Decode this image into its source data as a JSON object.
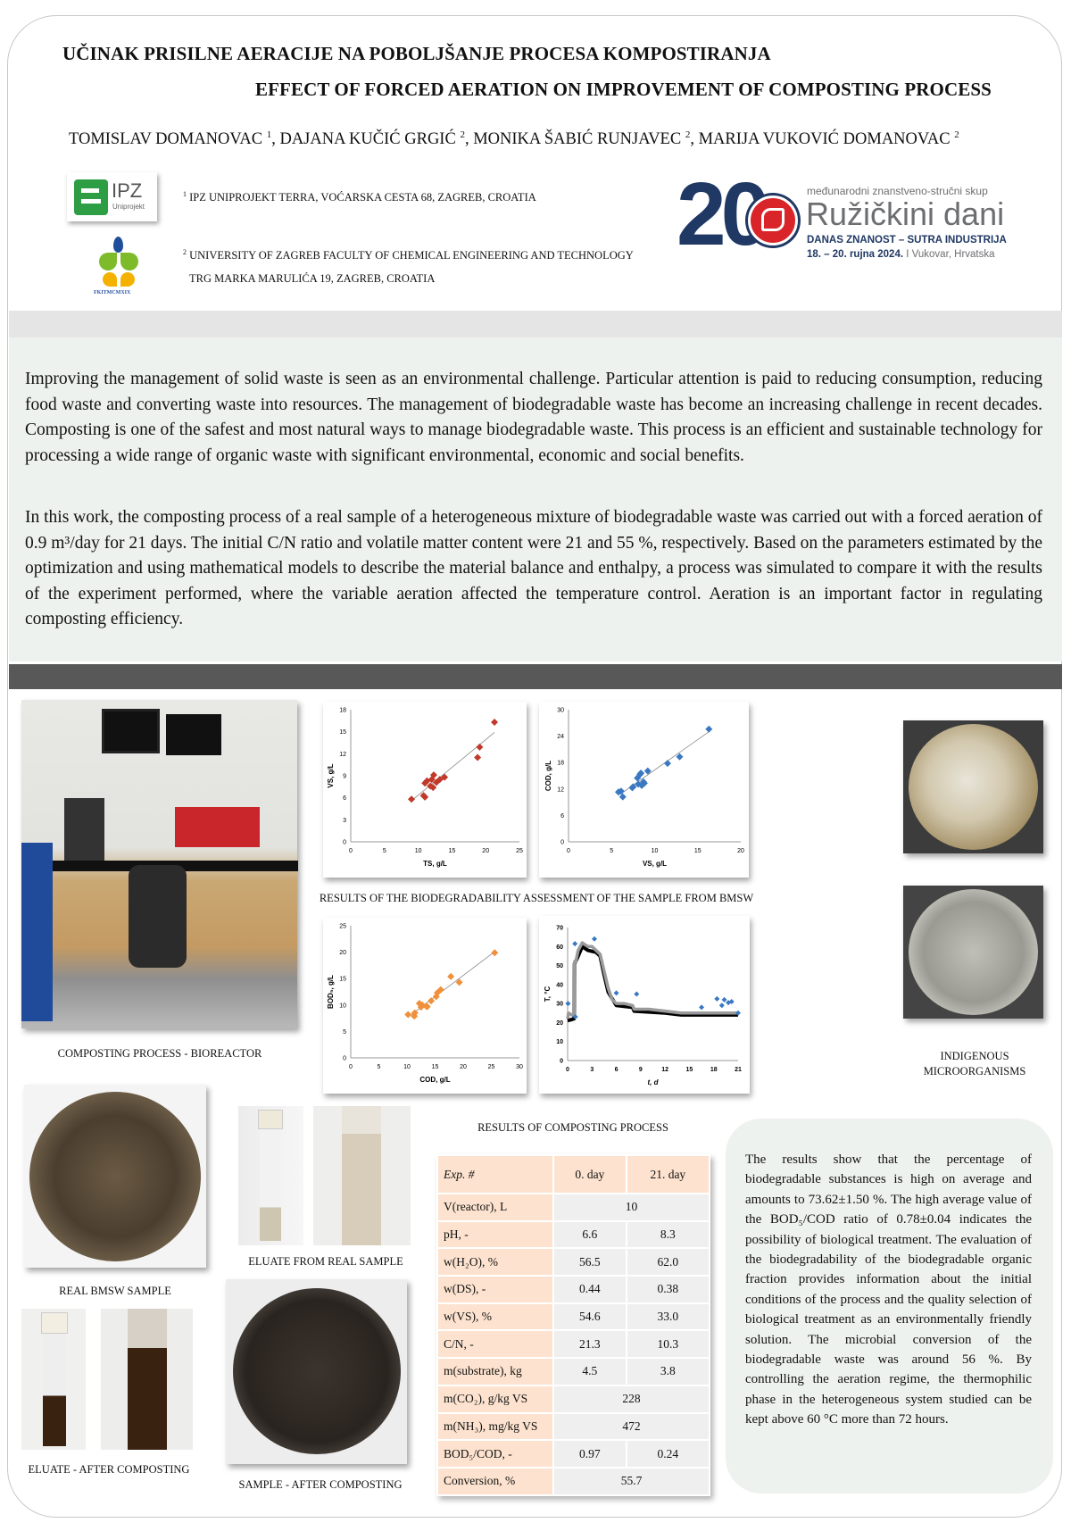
{
  "header": {
    "title_hr": "UČINAK PRISILNE AERACIJE NA POBOLJŠANJE PROCESA KOMPOSTIRANJA",
    "title_en": "EFFECT OF FORCED AERATION ON IMPROVEMENT OF COMPOSTING PROCESS",
    "authors": [
      {
        "name": "TOMISLAV DOMANOVAC",
        "aff": "1"
      },
      {
        "name": "DAJANA KUČIĆ GRGIĆ",
        "aff": "2"
      },
      {
        "name": "MONIKA ŠABIĆ RUNJAVEC",
        "aff": "2"
      },
      {
        "name": "MARIJA VUKOVIĆ DOMANOVAC",
        "aff": "2"
      }
    ],
    "affiliations": [
      {
        "num": "1",
        "line1": "IPZ UNIPROJEKT TERRA, VOĆARSKA CESTA 68, ZAGREB, CROATIA"
      },
      {
        "num": "2",
        "line1": "UNIVERSITY OF ZAGREB  FACULTY OF CHEMICAL ENGINEERING AND TECHNOLOGY",
        "line2": "TRG MARKA MARULIĆA 19, ZAGREB, CROATIA"
      }
    ],
    "logo_ipz": {
      "text": "IPZ",
      "sub": "Uniprojekt"
    },
    "logo_fkit": {
      "text": "FKITMCMXIX"
    },
    "conference": {
      "number": "20",
      "tagline": "međunarodni znanstveno-stručni skup",
      "name": "Ružičkini dani",
      "motto": "DANAS ZNANOST – SUTRA INDUSTRIJA",
      "dates": "18. – 20. rujna 2024.",
      "place": " I Vukovar, Hrvatska",
      "colors": {
        "navy": "#1f3864",
        "red": "#d9252a",
        "gray": "#6d6e71"
      }
    }
  },
  "abstract": {
    "p1": "Improving the management of solid waste is seen as an environmental challenge. Particular attention is paid to reducing consumption, reducing food waste and converting waste into resources. The management of biodegradable waste has become an increasing challenge in recent decades. Composting is one of the safest and most natural ways to manage biodegradable waste. This process is an efficient and sustainable technology for processing a wide range of organic waste with significant environmental, economic and social benefits.",
    "p2": "In this work, the composting process of a real sample of a heterogeneous mixture of biodegradable waste was carried out with a forced aeration of 0.9 m³/day for 21 days. The initial C/N ratio and volatile matter content were 21 and 55 %, respectively. Based on the parameters estimated by the optimization and using mathematical models to describe the material balance and enthalpy, a process was simulated to compare it with the results of the experiment performed, where the variable aeration affected the temperature control. Aeration is an important factor in regulating composting efficiency."
  },
  "captions": {
    "bioreactor": "COMPOSTING PROCESS - BIOREACTOR",
    "biodeg": "RESULTS OF THE BIODEGRADABILITY ASSESSMENT OF THE SAMPLE FROM BMSW",
    "micro1": "INDIGENOUS",
    "micro2": "MICROORGANISMS",
    "bmsw": "REAL BMSW SAMPLE",
    "eluate_real": "ELUATE FROM REAL SAMPLE",
    "eluate_after": "ELUATE - AFTER COMPOSTING",
    "sample_after": "SAMPLE - AFTER COMPOSTING",
    "table_title": "RESULTS OF COMPOSTING PROCESS"
  },
  "table": {
    "headers": [
      "Exp. #",
      "0. day",
      "21. day"
    ],
    "rows": [
      {
        "label": "V(reactor), L",
        "merged": "10"
      },
      {
        "label": "pH, -",
        "d0": "6.6",
        "d21": "8.3"
      },
      {
        "label": "w(H₂O), %",
        "d0": "56.5",
        "d21": "62.0"
      },
      {
        "label": "w(DS), -",
        "d0": "0.44",
        "d21": "0.38"
      },
      {
        "label": "w(VS), %",
        "d0": "54.6",
        "d21": "33.0"
      },
      {
        "label": "C/N, -",
        "d0": "21.3",
        "d21": "10.3"
      },
      {
        "label": "m(substrate), kg",
        "d0": "4.5",
        "d21": "3.8"
      },
      {
        "label": "m(CO₂), g/kg VS",
        "merged": "228"
      },
      {
        "label": "m(NH₃), mg/kg VS",
        "merged": "472"
      },
      {
        "label": "BOD₅/COD, -",
        "d0": "0.97",
        "d21": "0.24"
      },
      {
        "label": "Conversion, %",
        "merged": "55.7"
      }
    ]
  },
  "conclusion": "The results show that the percentage of biodegradable substances is high on average and amounts to 73.62±1.50 %. The high average value of the BOD₅/COD ratio of 0.78±0.04 indicates the possibility of biological treatment. The evaluation of the biodegradability of the biodegradable organic fraction provides information about the initial conditions of the process and the quality selection of biological treatment as an environmentally friendly solution. The microbial conversion of the biodegradable waste was around 56 %. By controlling the aeration regime, the thermophilic phase in the heterogeneous system studied can be kept above 60 °C more than 72 hours.",
  "chart_data": [
    {
      "type": "scatter",
      "xlabel": "TS, g/L",
      "ylabel": "VS, g/L",
      "xlim": [
        0,
        25
      ],
      "ylim": [
        0,
        18
      ],
      "xticks": [
        0,
        5,
        10,
        15,
        20,
        25
      ],
      "yticks": [
        0,
        3,
        6,
        9,
        12,
        15,
        18
      ],
      "color": "#c0392b",
      "trendline": [
        [
          9,
          5.6
        ],
        [
          21.3,
          14.9
        ]
      ],
      "points": [
        [
          9,
          5.8
        ],
        [
          10.8,
          6.3
        ],
        [
          11,
          6.1
        ],
        [
          11,
          8
        ],
        [
          11.3,
          8.3
        ],
        [
          11.8,
          7.6
        ],
        [
          12,
          8.5
        ],
        [
          12.2,
          7.4
        ],
        [
          12.3,
          9.1
        ],
        [
          12.7,
          8.1
        ],
        [
          13.2,
          8.5
        ],
        [
          13.9,
          8.8
        ],
        [
          18.8,
          11.5
        ],
        [
          19.1,
          12.9
        ],
        [
          21.3,
          16.3
        ]
      ]
    },
    {
      "type": "scatter",
      "xlabel": "VS, g/L",
      "ylabel": "COD, g/L",
      "xlim": [
        0,
        20
      ],
      "ylim": [
        0,
        30
      ],
      "xticks": [
        0,
        5,
        10,
        15,
        20
      ],
      "yticks": [
        0,
        6,
        12,
        18,
        24,
        30
      ],
      "color": "#3a78c2",
      "trendline": [
        [
          6,
          10.8
        ],
        [
          16.3,
          25
        ]
      ],
      "points": [
        [
          5.8,
          11.3
        ],
        [
          6.1,
          11.5
        ],
        [
          6.3,
          10.2
        ],
        [
          7.4,
          12.3
        ],
        [
          7.5,
          12.5
        ],
        [
          8,
          14.5
        ],
        [
          8.1,
          13.1
        ],
        [
          8.3,
          15.3
        ],
        [
          8.4,
          15.6
        ],
        [
          8.5,
          12.8
        ],
        [
          8.7,
          13.6
        ],
        [
          8.8,
          13.3
        ],
        [
          9.2,
          16.1
        ],
        [
          11.5,
          17.8
        ],
        [
          12.9,
          19.3
        ],
        [
          16.3,
          25.6
        ]
      ]
    },
    {
      "type": "scatter",
      "xlabel": "COD, g/L",
      "ylabel": "BOD₅, g/L",
      "xlim": [
        0,
        30
      ],
      "ylim": [
        0,
        25
      ],
      "xticks": [
        0,
        5,
        10,
        15,
        20,
        25,
        30
      ],
      "yticks": [
        0,
        5,
        10,
        15,
        20,
        25
      ],
      "color": "#f0903a",
      "trendline": [
        [
          10.3,
          7.8
        ],
        [
          25.6,
          20.1
        ]
      ],
      "points": [
        [
          10.2,
          8.2
        ],
        [
          11.3,
          7.9
        ],
        [
          11.4,
          8.5
        ],
        [
          12.2,
          10.3
        ],
        [
          12.5,
          9.6
        ],
        [
          12.7,
          10
        ],
        [
          13.4,
          9.8
        ],
        [
          13.6,
          9.7
        ],
        [
          14.3,
          10.8
        ],
        [
          15.2,
          11.6
        ],
        [
          15.4,
          12.3
        ],
        [
          16,
          12.9
        ],
        [
          17.8,
          15.4
        ],
        [
          19.3,
          14.3
        ],
        [
          25.6,
          19.9
        ]
      ]
    },
    {
      "type": "line",
      "xlabel": "t, d",
      "ylabel": "T,  °C",
      "xlim": [
        0,
        21
      ],
      "ylim": [
        0,
        70
      ],
      "xticks": [
        0,
        3,
        6,
        9,
        12,
        15,
        18,
        21
      ],
      "yticks": [
        0,
        10,
        20,
        30,
        40,
        50,
        60,
        70
      ],
      "series": [
        {
          "color": "#000000",
          "points": [
            [
              0,
              21
            ],
            [
              0.8,
              22
            ],
            [
              0.85,
              51
            ],
            [
              1.2,
              54
            ],
            [
              1.8,
              60
            ],
            [
              2.5,
              58
            ],
            [
              3.5,
              57
            ],
            [
              4,
              55
            ],
            [
              4.5,
              45
            ],
            [
              5,
              36
            ],
            [
              6,
              29
            ],
            [
              8,
              28
            ],
            [
              8.2,
              26
            ],
            [
              12,
              25
            ],
            [
              14,
              24
            ],
            [
              21,
              24
            ]
          ]
        },
        {
          "color": "#9a9a9a",
          "points": [
            [
              0,
              22
            ],
            [
              0.1,
              25
            ],
            [
              0.5,
              24
            ],
            [
              0.8,
              24
            ],
            [
              0.85,
              52
            ],
            [
              1,
              52
            ],
            [
              1.3,
              58
            ],
            [
              1.8,
              62
            ],
            [
              2.5,
              60
            ],
            [
              3,
              60
            ],
            [
              3.5,
              58
            ],
            [
              4,
              56
            ],
            [
              4.5,
              47
            ],
            [
              5,
              38
            ],
            [
              5.5,
              32
            ],
            [
              6,
              30
            ],
            [
              7,
              30
            ],
            [
              8,
              29
            ],
            [
              8.2,
              27
            ],
            [
              10,
              27
            ],
            [
              12,
              26
            ],
            [
              14,
              25
            ],
            [
              15,
              25
            ],
            [
              18,
              25
            ],
            [
              21,
              25
            ]
          ]
        },
        {
          "color": "#3a78c2",
          "markers_only": true,
          "points": [
            [
              0.05,
              30
            ],
            [
              0.9,
              61.5
            ],
            [
              0.95,
              23
            ],
            [
              3.3,
              64
            ],
            [
              6,
              35.5
            ],
            [
              8.5,
              35
            ],
            [
              16.5,
              28
            ],
            [
              18.4,
              32.5
            ],
            [
              19,
              29
            ],
            [
              19.3,
              32
            ],
            [
              19.8,
              30.5
            ],
            [
              20.2,
              31
            ],
            [
              21,
              25
            ]
          ]
        }
      ]
    }
  ]
}
